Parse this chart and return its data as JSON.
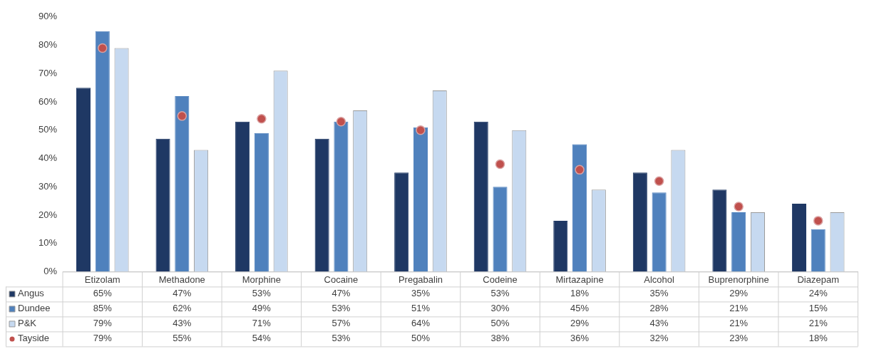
{
  "chart_data": {
    "type": "bar",
    "categories": [
      "Etizolam",
      "Methadone",
      "Morphine",
      "Cocaine",
      "Pregabalin",
      "Codeine",
      "Mirtazapine",
      "Alcohol",
      "Buprenorphine",
      "Diazepam"
    ],
    "series": [
      {
        "name": "Angus",
        "color": "#1f3864",
        "values": [
          65,
          47,
          53,
          47,
          35,
          53,
          18,
          35,
          29,
          24
        ],
        "value_labels": [
          "65%",
          "47%",
          "53%",
          "47%",
          "35%",
          "53%",
          "18%",
          "35%",
          "29%",
          "24%"
        ]
      },
      {
        "name": "Dundee",
        "color": "#4f81bd",
        "values": [
          85,
          62,
          49,
          53,
          51,
          30,
          45,
          28,
          21,
          15
        ],
        "value_labels": [
          "85%",
          "62%",
          "49%",
          "53%",
          "51%",
          "30%",
          "45%",
          "28%",
          "21%",
          "15%"
        ]
      },
      {
        "name": "P&K",
        "color": "#c6d9f0",
        "values": [
          79,
          43,
          71,
          57,
          64,
          50,
          29,
          43,
          21,
          21
        ],
        "value_labels": [
          "79%",
          "43%",
          "71%",
          "57%",
          "64%",
          "50%",
          "29%",
          "43%",
          "21%",
          "21%"
        ]
      },
      {
        "name": "Tayside",
        "type": "scatter",
        "marker": "circle",
        "color": "#c0504d",
        "x": [
          "Etizolam",
          "Methadone",
          "Morphine",
          "Cocaine",
          "Pregabalin",
          "Codeine",
          "Mirtazapine",
          "Alcohol",
          "Buprenorphine",
          "Diazepam"
        ],
        "values": [
          79,
          55,
          54,
          53,
          50,
          38,
          36,
          32,
          23,
          18
        ],
        "value_labels": [
          "79%",
          "55%",
          "54%",
          "53%",
          "50%",
          "38%",
          "36%",
          "32%",
          "23%",
          "18%"
        ]
      }
    ],
    "ylim": [
      0,
      90
    ],
    "yticks": [
      {
        "value": 0,
        "label": "0%"
      },
      {
        "value": 10,
        "label": "10%"
      },
      {
        "value": 20,
        "label": "20%"
      },
      {
        "value": 30,
        "label": "30%"
      },
      {
        "value": 40,
        "label": "40%"
      },
      {
        "value": 50,
        "label": "50%"
      },
      {
        "value": 60,
        "label": "60%"
      },
      {
        "value": 70,
        "label": "70%"
      },
      {
        "value": 80,
        "label": "80%"
      },
      {
        "value": 90,
        "label": "90%"
      }
    ],
    "grid": false,
    "legend": "bottom"
  }
}
